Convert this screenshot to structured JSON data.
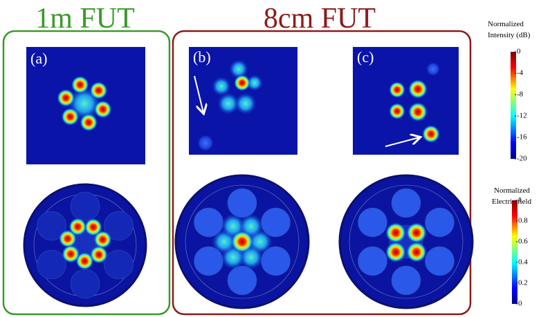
{
  "figure": {
    "groups": [
      {
        "title": "1m FUT"
      },
      {
        "title": "8cm FUT"
      }
    ],
    "panels": [
      "(a)",
      "(b)",
      "(c)"
    ],
    "colorbars": [
      {
        "title": [
          "Normalized",
          "Intensity (dB)"
        ],
        "lim": [
          -20,
          0
        ],
        "ticks": [
          0,
          -4,
          -8,
          -12,
          -16,
          -20
        ]
      },
      {
        "title": [
          "Normalized",
          "Electric field"
        ],
        "lim": [
          0,
          1
        ],
        "ticks": [
          1,
          0.8,
          0.6,
          0.4,
          0.2,
          0
        ]
      }
    ]
  }
}
